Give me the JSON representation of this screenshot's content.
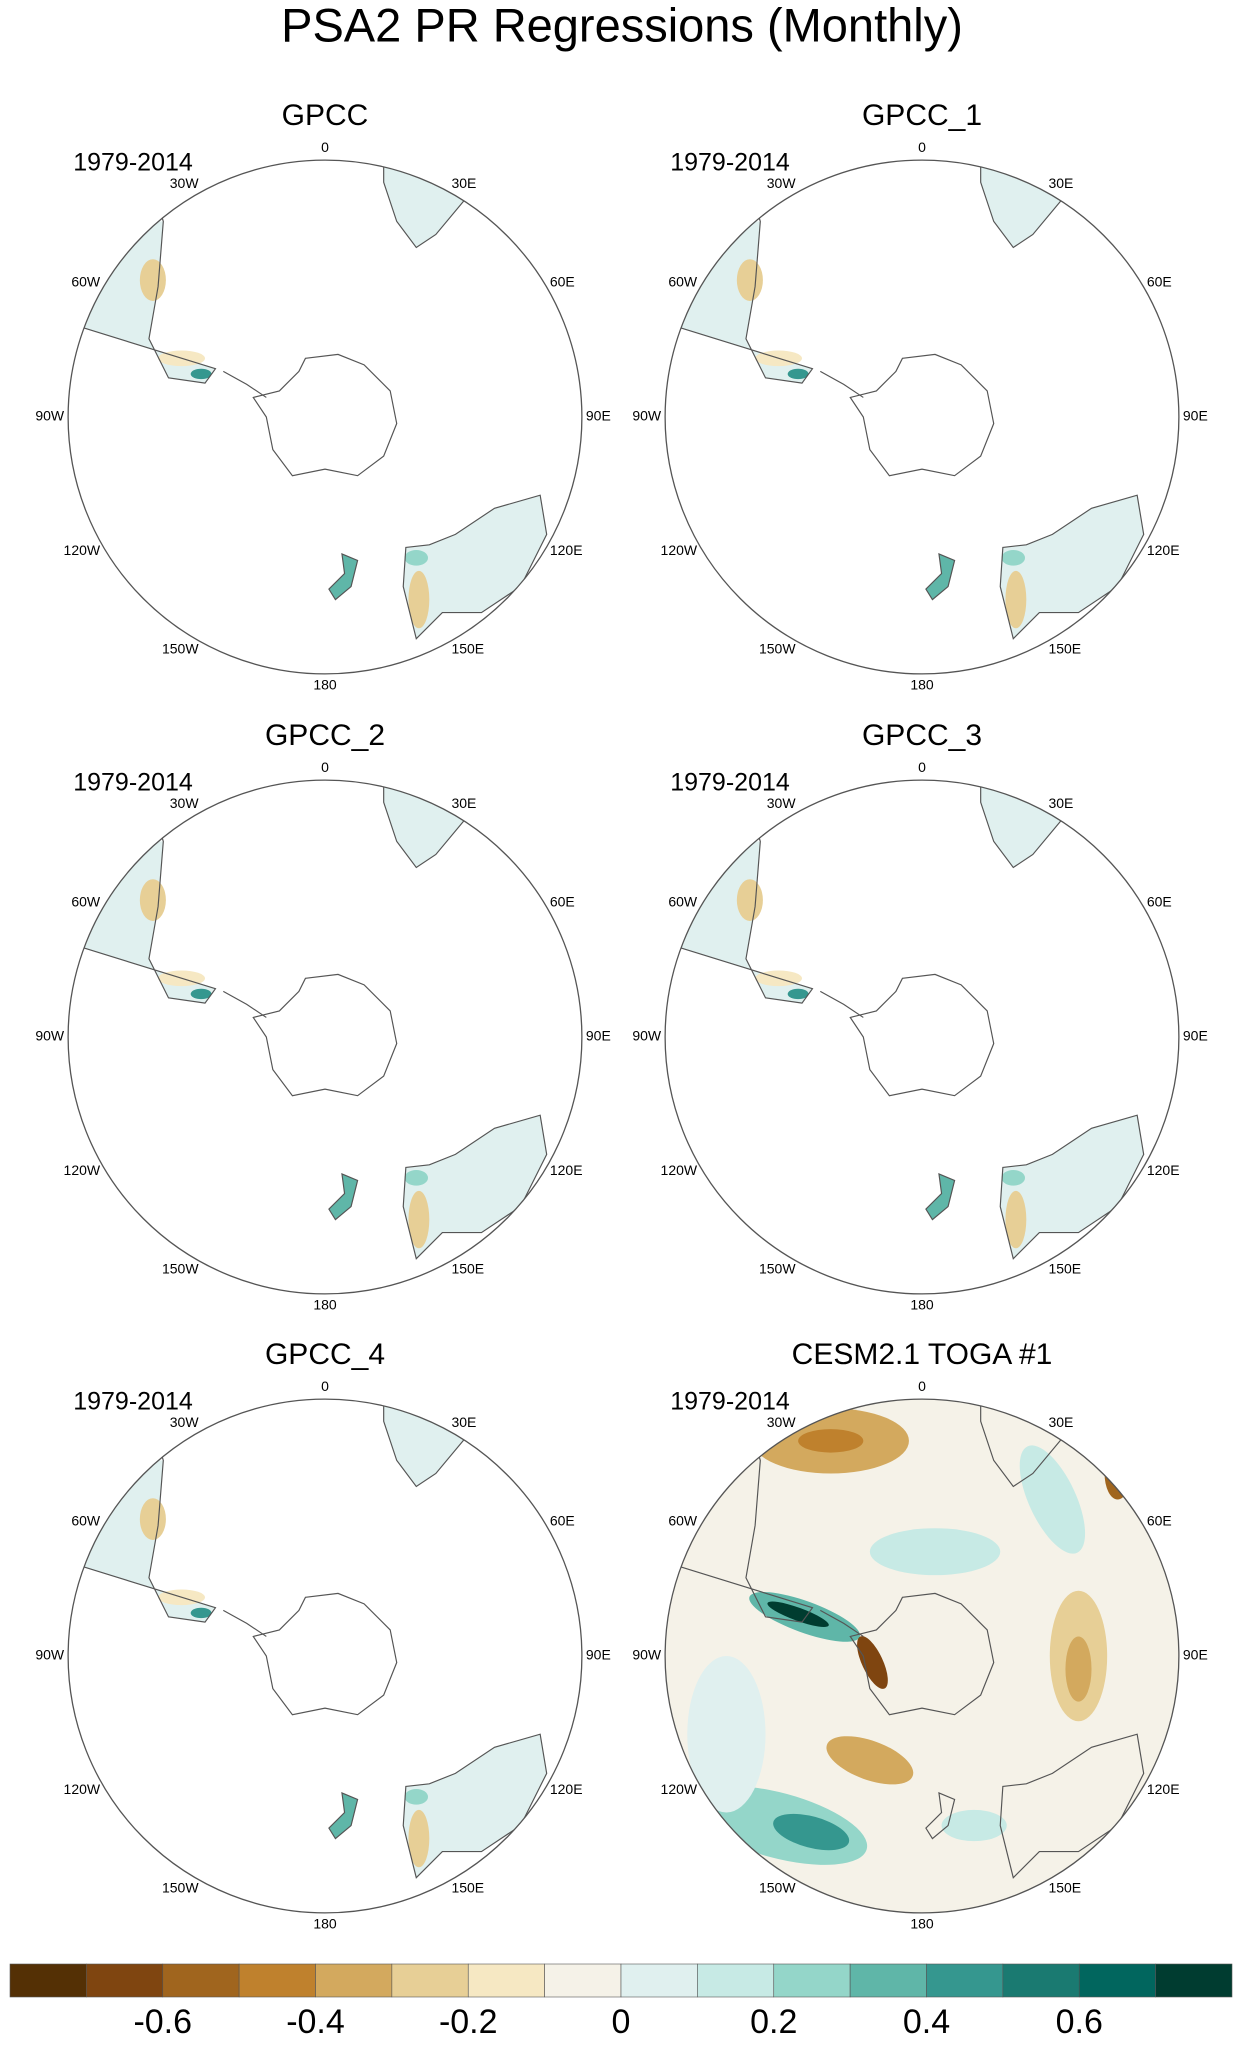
{
  "title": "PSA2 PR Regressions (Monthly)",
  "longitude_labels": [
    "0",
    "30E",
    "60E",
    "90E",
    "120E",
    "150E",
    "180",
    "150W",
    "120W",
    "90W",
    "60W",
    "30W"
  ],
  "panels": [
    {
      "title": "GPCC",
      "period": "1979-2014"
    },
    {
      "title": "GPCC_1",
      "period": "1979-2014"
    },
    {
      "title": "GPCC_2",
      "period": "1979-2014"
    },
    {
      "title": "GPCC_3",
      "period": "1979-2014"
    },
    {
      "title": "GPCC_4",
      "period": "1979-2014"
    },
    {
      "title": "CESM2.1 TOGA #1",
      "period": "1979-2014"
    }
  ],
  "colorbar": {
    "colors": [
      "#543005",
      "#7f4510",
      "#a0651e",
      "#bf812d",
      "#d3a95e",
      "#e7cf96",
      "#f6e8c3",
      "#f5f2e8",
      "#e0f0ef",
      "#c7eae5",
      "#94d6c9",
      "#5fb6a8",
      "#35978f",
      "#1a7a71",
      "#01665e",
      "#003c30"
    ],
    "lim": [
      -0.8,
      0.8
    ],
    "ticks": [
      -0.6,
      -0.4,
      -0.2,
      0,
      0.2,
      0.4,
      0.6
    ]
  }
}
